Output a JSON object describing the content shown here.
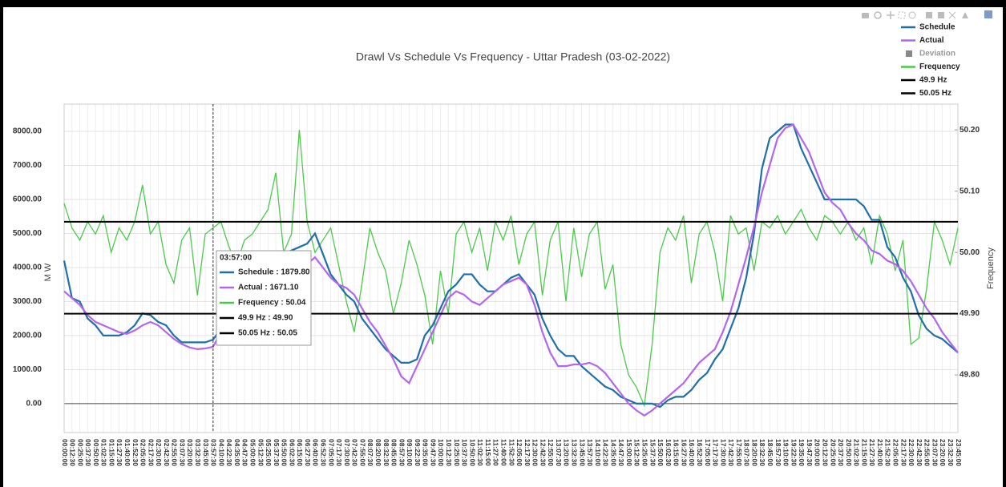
{
  "chart_data": {
    "type": "line",
    "title": "Drawl Vs Schedule Vs Frequency - Uttar Pradesh (03-02-2022)",
    "ylabel": "M W",
    "y2label": "Frequency",
    "categories": [
      "00:00:00",
      "00:12:30",
      "00:25:00",
      "00:37:30",
      "00:50:00",
      "01:02:30",
      "01:15:00",
      "01:27:30",
      "01:40:00",
      "01:52:30",
      "02:05:00",
      "02:17:30",
      "02:30:00",
      "02:42:30",
      "02:55:00",
      "03:07:30",
      "03:20:00",
      "03:32:30",
      "03:45:00",
      "03:57:30",
      "04:10:00",
      "04:22:30",
      "04:35:00",
      "04:47:30",
      "05:00:00",
      "05:12:30",
      "05:25:00",
      "05:37:30",
      "05:50:00",
      "06:02:30",
      "06:15:00",
      "06:27:30",
      "06:40:00",
      "06:52:30",
      "07:05:00",
      "07:17:30",
      "07:30:00",
      "07:42:30",
      "07:55:00",
      "08:07:30",
      "08:20:00",
      "08:32:30",
      "08:45:00",
      "08:57:30",
      "09:10:00",
      "09:22:30",
      "09:35:00",
      "09:47:30",
      "10:00:00",
      "10:12:30",
      "10:25:00",
      "10:37:30",
      "10:50:00",
      "11:02:30",
      "11:15:00",
      "11:27:30",
      "11:40:00",
      "11:52:30",
      "12:05:00",
      "12:17:30",
      "12:30:00",
      "12:42:30",
      "12:55:00",
      "13:07:30",
      "13:20:00",
      "13:32:30",
      "13:45:00",
      "13:57:30",
      "14:10:00",
      "14:22:30",
      "14:35:00",
      "14:47:30",
      "15:00:00",
      "15:12:30",
      "15:25:00",
      "15:37:30",
      "15:50:00",
      "16:02:30",
      "16:15:00",
      "16:27:30",
      "16:40:00",
      "16:52:30",
      "17:05:00",
      "17:17:30",
      "17:30:00",
      "17:42:30",
      "17:55:00",
      "18:07:30",
      "18:20:00",
      "18:32:30",
      "18:45:00",
      "18:57:30",
      "19:10:00",
      "19:22:30",
      "19:35:00",
      "19:47:30",
      "20:00:00",
      "20:12:30",
      "20:25:00",
      "20:37:30",
      "20:50:00",
      "21:02:30",
      "21:15:00",
      "21:27:30",
      "21:40:00",
      "21:52:30",
      "22:05:00",
      "22:17:30",
      "22:30:00",
      "22:42:30",
      "22:55:00",
      "23:07:30",
      "23:20:00",
      "23:32:30",
      "23:45:00"
    ],
    "series": [
      {
        "name": "Schedule",
        "color": "#1f6fa8",
        "values": [
          4200,
          3100,
          3000,
          2500,
          2300,
          2000,
          2000,
          2000,
          2100,
          2300,
          2650,
          2600,
          2400,
          2300,
          2000,
          1800,
          1800,
          1800,
          1800,
          1880,
          2200,
          3000,
          3300,
          3500,
          3700,
          3800,
          4000,
          4200,
          4400,
          4500,
          4600,
          4700,
          5000,
          4400,
          3800,
          3500,
          3200,
          3000,
          2500,
          2200,
          1900,
          1600,
          1400,
          1200,
          1200,
          1300,
          2000,
          2300,
          2800,
          3300,
          3500,
          3800,
          3800,
          3500,
          3300,
          3300,
          3500,
          3700,
          3800,
          3500,
          3200,
          2500,
          2000,
          1600,
          1400,
          1400,
          1100,
          900,
          700,
          500,
          400,
          200,
          100,
          0,
          0,
          0,
          -100,
          100,
          200,
          200,
          400,
          700,
          900,
          1300,
          1600,
          2200,
          2800,
          3700,
          5000,
          6900,
          7800,
          8000,
          8200,
          8200,
          7500,
          7000,
          6500,
          6000,
          6000,
          6000,
          6000,
          6000,
          5800,
          5400,
          5400,
          4600,
          4300,
          3700,
          3300,
          2600,
          2200,
          2000,
          1900,
          1700,
          1500
        ]
      },
      {
        "name": "Actual",
        "color": "#b266ee",
        "values": [
          3300,
          3100,
          2900,
          2600,
          2400,
          2300,
          2200,
          2100,
          2050,
          2150,
          2300,
          2400,
          2300,
          2100,
          1900,
          1750,
          1650,
          1600,
          1620,
          1671,
          2100,
          2600,
          3100,
          3400,
          3600,
          3800,
          3900,
          4000,
          4000,
          3900,
          3900,
          4100,
          4300,
          4000,
          3700,
          3500,
          3400,
          3200,
          2800,
          2400,
          2100,
          1700,
          1300,
          800,
          600,
          1100,
          1600,
          2100,
          2600,
          3100,
          3300,
          3200,
          3000,
          2900,
          3100,
          3300,
          3500,
          3600,
          3700,
          3500,
          2900,
          2100,
          1500,
          1100,
          1100,
          1150,
          1150,
          1200,
          1100,
          900,
          600,
          300,
          0,
          -200,
          -350,
          -200,
          0,
          200,
          400,
          600,
          900,
          1200,
          1400,
          1600,
          2100,
          2700,
          3500,
          4300,
          5200,
          6200,
          7000,
          7800,
          8100,
          8200,
          7800,
          7400,
          6800,
          6200,
          5900,
          5700,
          5300,
          5000,
          4800,
          4500,
          4400,
          4200,
          4100,
          3900,
          3600,
          3200,
          2800,
          2500,
          2100,
          1800,
          1500
        ]
      },
      {
        "name": "Deviation",
        "color": "#888888",
        "visible": false
      },
      {
        "name": "Frequency",
        "color": "#4cc94c",
        "axis": "y2",
        "values": [
          50.08,
          50.04,
          50.02,
          50.05,
          50.03,
          50.06,
          50.0,
          50.04,
          50.02,
          50.05,
          50.11,
          50.03,
          50.05,
          49.98,
          49.95,
          50.02,
          50.04,
          49.93,
          50.03,
          50.04,
          50.05,
          50.01,
          49.98,
          50.02,
          50.03,
          50.05,
          50.07,
          50.13,
          50.0,
          50.03,
          50.2,
          50.05,
          50.0,
          50.02,
          50.04,
          49.98,
          49.92,
          49.87,
          49.95,
          50.04,
          50.0,
          49.97,
          49.9,
          49.95,
          50.02,
          49.98,
          49.93,
          49.85,
          49.97,
          49.9,
          50.03,
          50.05,
          50.0,
          50.04,
          49.97,
          50.05,
          50.02,
          50.06,
          49.98,
          50.03,
          50.05,
          49.93,
          50.02,
          50.05,
          49.92,
          50.04,
          49.96,
          50.03,
          50.05,
          49.94,
          49.98,
          49.85,
          49.8,
          49.78,
          49.75,
          49.85,
          50.0,
          50.04,
          50.02,
          50.06,
          49.95,
          50.03,
          50.05,
          50.0,
          49.92,
          50.06,
          50.03,
          50.04,
          49.97,
          50.05,
          50.04,
          50.06,
          50.03,
          50.05,
          50.07,
          50.04,
          50.02,
          50.06,
          50.05,
          50.03,
          50.05,
          50.02,
          50.04,
          49.98,
          50.06,
          50.03,
          49.97,
          50.02,
          49.85,
          49.86,
          49.94,
          50.05,
          50.02,
          49.98,
          50.04
        ]
      }
    ],
    "hlines": [
      {
        "name": "49.9 Hz",
        "value": 49.9,
        "axis": "y2",
        "color": "#000000"
      },
      {
        "name": "50.05 Hz",
        "value": 50.05,
        "axis": "y2",
        "color": "#000000"
      }
    ],
    "ylim": [
      -850,
      8800
    ],
    "yticks": [
      {
        "value": 0,
        "label": "0.00"
      },
      {
        "value": 1000,
        "label": "1000.00"
      },
      {
        "value": 2000,
        "label": "2000.00"
      },
      {
        "value": 3000,
        "label": "3000.00"
      },
      {
        "value": 4000,
        "label": "4000.00"
      },
      {
        "value": 5000,
        "label": "5000.00"
      },
      {
        "value": 6000,
        "label": "6000.00"
      },
      {
        "value": 7000,
        "label": "7000.00"
      },
      {
        "value": 8000,
        "label": "8000.00"
      }
    ],
    "y2lim": [
      49.706,
      50.242
    ],
    "y2ticks": [
      {
        "value": 49.8,
        "label": "49.80"
      },
      {
        "value": 49.9,
        "label": "49.90"
      },
      {
        "value": 50.0,
        "label": "50.00"
      },
      {
        "value": 50.1,
        "label": "50.10"
      },
      {
        "value": 50.2,
        "label": "50.20"
      }
    ],
    "grid": true,
    "legend": "top-right",
    "tooltip": {
      "index": 19,
      "title": "03:57:00",
      "items": [
        {
          "label": "Schedule : 1879.80",
          "color": "#1f6fa8"
        },
        {
          "label": "Actual : 1671.10",
          "color": "#b266ee"
        },
        {
          "label": "Frequency : 50.04",
          "color": "#4cc94c"
        },
        {
          "label": "49.9 Hz : 49.90",
          "color": "#000000"
        },
        {
          "label": "50.05 Hz : 50.05",
          "color": "#000000"
        }
      ]
    }
  }
}
